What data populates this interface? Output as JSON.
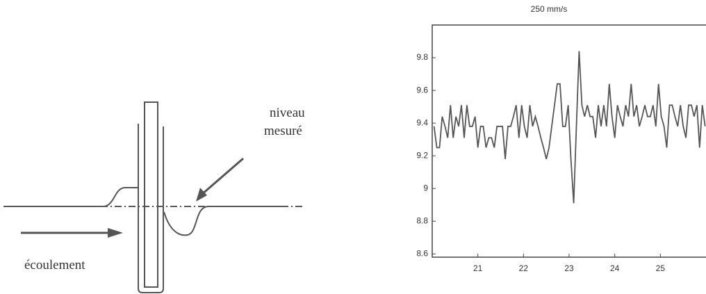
{
  "diagram": {
    "labels": [
      "niveau",
      "mesuré",
      "écoulement"
    ]
  },
  "chart_data": {
    "type": "line",
    "title": "250 mm/s",
    "color": "#555555",
    "x": [
      20.04,
      20.1,
      20.16,
      20.22,
      20.28,
      20.34,
      20.4,
      20.46,
      20.52,
      20.58,
      20.64,
      20.7,
      20.76,
      20.82,
      20.88,
      20.94,
      21,
      21.06,
      21.12,
      21.18,
      21.24,
      21.3,
      21.36,
      21.42,
      21.48,
      21.54,
      21.6,
      21.66,
      21.72,
      21.78,
      21.84,
      21.9,
      21.96,
      22.02,
      22.08,
      22.14,
      22.2,
      22.26,
      22.32,
      22.38,
      22.44,
      22.5,
      22.56,
      22.62,
      22.68,
      22.74,
      22.8,
      22.86,
      22.92,
      22.98,
      23.04,
      23.1,
      23.16,
      23.22,
      23.28,
      23.34,
      23.4,
      23.46,
      23.52,
      23.58,
      23.64,
      23.7,
      23.76,
      23.82,
      23.88,
      23.94,
      24,
      24.06,
      24.12,
      24.18,
      24.24,
      24.3,
      24.36,
      24.42,
      24.48,
      24.54,
      24.6,
      24.66,
      24.72,
      24.78,
      24.84,
      24.9,
      24.96,
      25.02,
      25.08,
      25.14,
      25.2,
      25.26,
      25.32,
      25.38,
      25.44,
      25.5,
      25.56,
      25.62,
      25.68,
      25.74,
      25.8,
      25.86,
      25.92,
      25.98
    ],
    "values": [
      9.38,
      9.25,
      9.25,
      9.44,
      9.38,
      9.31,
      9.51,
      9.31,
      9.44,
      9.38,
      9.51,
      9.31,
      9.51,
      9.38,
      9.38,
      9.44,
      9.25,
      9.38,
      9.38,
      9.25,
      9.31,
      9.31,
      9.25,
      9.38,
      9.38,
      9.38,
      9.18,
      9.38,
      9.38,
      9.44,
      9.51,
      9.31,
      9.51,
      9.38,
      9.31,
      9.51,
      9.38,
      9.44,
      9.38,
      9.31,
      9.25,
      9.18,
      9.25,
      9.38,
      9.51,
      9.64,
      9.64,
      9.38,
      9.38,
      9.51,
      9.18,
      8.91,
      9.38,
      9.84,
      9.51,
      9.44,
      9.51,
      9.44,
      9.44,
      9.31,
      9.51,
      9.38,
      9.51,
      9.38,
      9.64,
      9.44,
      9.31,
      9.51,
      9.44,
      9.38,
      9.51,
      9.44,
      9.64,
      9.44,
      9.51,
      9.38,
      9.44,
      9.51,
      9.44,
      9.44,
      9.51,
      9.38,
      9.64,
      9.44,
      9.38,
      9.25,
      9.51,
      9.51,
      9.44,
      9.38,
      9.51,
      9.38,
      9.31,
      9.51,
      9.51,
      9.44,
      9.51,
      9.25,
      9.51,
      9.38
    ],
    "xlim": [
      20,
      26
    ],
    "xticks": [
      21,
      22,
      23,
      24,
      25
    ],
    "ylim": [
      8.58,
      10
    ],
    "yticks": [
      8.6,
      8.8,
      9,
      9.2,
      9.4,
      9.6,
      9.8
    ]
  }
}
